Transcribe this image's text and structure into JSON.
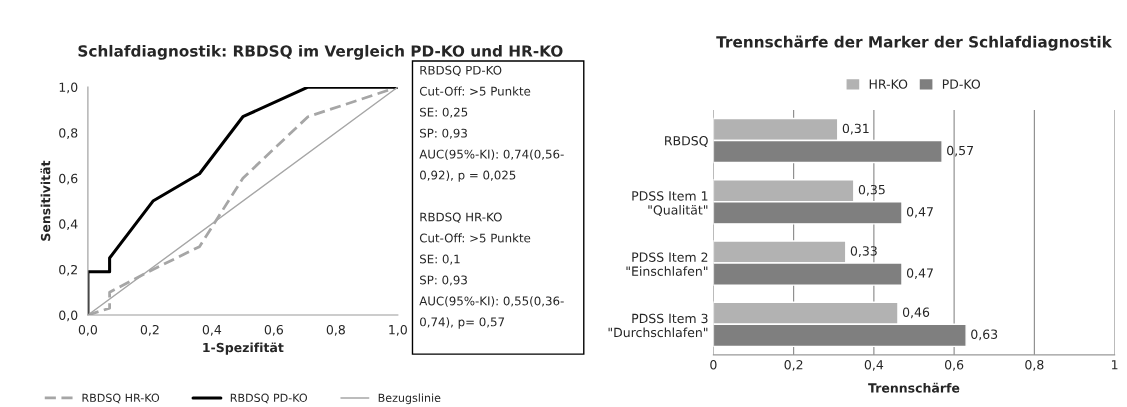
{
  "chart_data": [
    {
      "type": "line",
      "title": "Schlafdiagnostik: RBDSQ im Vergleich PD-KO und HR-KO",
      "xlabel": "1-Spezifität",
      "ylabel": "Sensitivität",
      "series": [
        {
          "name": "RBDSQ HR-KO",
          "color": "#a6a6a6",
          "line_style": "dashed",
          "x": [
            0,
            0.07,
            0.07,
            0.21,
            0.36,
            0.5,
            0.71,
            1.0
          ],
          "values": [
            0,
            0.03,
            0.1,
            0.2,
            0.3,
            0.6,
            0.87,
            1.0
          ]
        },
        {
          "name": "RBDSQ PD-KO",
          "color": "#000000",
          "line_style": "solid",
          "x": [
            0,
            0,
            0.07,
            0.07,
            0.21,
            0.36,
            0.5,
            0.71,
            1.0
          ],
          "values": [
            0,
            0.19,
            0.19,
            0.25,
            0.5,
            0.62,
            0.87,
            1.0,
            1.0
          ]
        },
        {
          "name": "Bezugslinie",
          "color": "#a6a6a6",
          "line_style": "solid",
          "x": [
            0,
            1.0
          ],
          "values": [
            0,
            1.0
          ]
        }
      ],
      "xlim": [
        0,
        1.0
      ],
      "ylim": [
        0,
        1.0
      ],
      "xticks": [
        {
          "value": 0,
          "label": "0,0"
        },
        {
          "value": 0.2,
          "label": "0,2"
        },
        {
          "value": 0.4,
          "label": "0,4"
        },
        {
          "value": 0.6,
          "label": "0,6"
        },
        {
          "value": 0.8,
          "label": "0,8"
        },
        {
          "value": 1.0,
          "label": "1,0"
        }
      ],
      "yticks": [
        {
          "value": 0,
          "label": "0,0"
        },
        {
          "value": 0.2,
          "label": "0,2"
        },
        {
          "value": 0.4,
          "label": "0,4"
        },
        {
          "value": 0.6,
          "label": "0,6"
        },
        {
          "value": 0.8,
          "label": "0,8"
        },
        {
          "value": 1.0,
          "label": "1,0"
        }
      ],
      "grid": false,
      "legend": "bottom",
      "annotations": [
        "RBDSQ PD-KO",
        "Cut-Off: >5 Punkte",
        "SE: 0,25",
        "SP: 0,93",
        "AUC(95%-KI): 0,74(0,56-",
        "0,92), p = 0,025",
        "RBDSQ HR-KO",
        "Cut-Off: >5 Punkte",
        "SE: 0,1",
        "SP: 0,93",
        "AUC(95%-KI): 0,55(0,36-",
        "0,74), p= 0,57"
      ]
    },
    {
      "type": "bar",
      "orientation": "horizontal",
      "title": "Trennschärfe der Marker der Schlafdiagnostik",
      "xlabel": "Trennschärfe",
      "categories": [
        "RBDSQ",
        "PDSS Item 1\n\"Qualität\"",
        "PDSS Item 2\n\"Einschlafen\"",
        "PDSS Item 3\n\"Durchschlafen\""
      ],
      "series": [
        {
          "name": "HR-KO",
          "color": "#b2b2b2",
          "values": [
            0.31,
            0.35,
            0.33,
            0.46
          ]
        },
        {
          "name": "PD-KO",
          "color": "#7f7f7f",
          "values": [
            0.57,
            0.47,
            0.47,
            0.63
          ]
        }
      ],
      "xlim": [
        0,
        1
      ],
      "xticks": [
        0,
        {
          "value": 0.2,
          "label": "0,2"
        },
        {
          "value": 0.4,
          "label": "0,4"
        },
        {
          "value": 0.6,
          "label": "0,6"
        },
        {
          "value": 0.8,
          "label": "0,8"
        },
        1
      ],
      "grid": "x",
      "legend": "top",
      "value_labels": [
        [
          "0,31",
          "0,35",
          "0,33",
          "0,46"
        ],
        [
          "0,57",
          "0,47",
          "0,47",
          "0,63"
        ]
      ]
    }
  ]
}
